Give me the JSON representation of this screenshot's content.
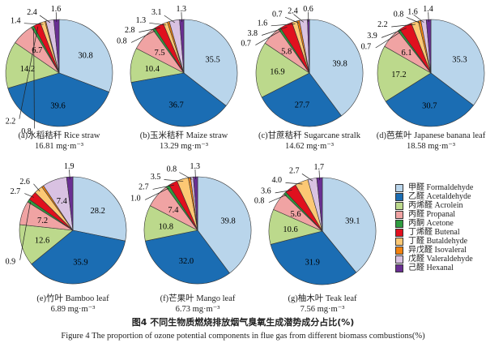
{
  "chart_data": {
    "type": "pie",
    "title_cn": "图4 不同生物质燃烧排放烟气臭氧生成潜势成分占比(%)",
    "title_en": "Figure 4  The proportion of ozone potential components in flue gas from different biomass combustions(%)",
    "components": [
      "甲醛 Formaldehyde",
      "乙醛 Acetaldehyde",
      "丙烯醛 Acrolein",
      "丙醛 Propanal",
      "丙酮 Acetone",
      "丁烯醛 Butenal",
      "丁醛 Butaldehyde",
      "异戊醛 Isovaleral",
      "戊醛 Valeraldehyde",
      "己醛 Hexanal"
    ],
    "colors": [
      "#b9d5eb",
      "#1b6db3",
      "#bcd98c",
      "#f0a3a3",
      "#2f9b3f",
      "#e0101e",
      "#fcc874",
      "#f2820f",
      "#d9c2e2",
      "#6a2f93"
    ],
    "legend_position": "right",
    "pies": [
      {
        "caption": "(a)水稻秸秆 Rice straw",
        "total": "16.81 mg·m⁻³",
        "values": [
          30.8,
          39.6,
          14.2,
          6.7,
          0.8,
          2.2,
          1.4,
          0.3,
          2.4,
          1.6
        ],
        "labels": [
          "30.8",
          "39.6",
          "14.2",
          "6.7",
          "0.8",
          "2.2",
          "1.4",
          null,
          "2.4",
          "1.6"
        ]
      },
      {
        "caption": "(b)玉米秸秆 Maize straw",
        "total": "13.29 mg·m⁻³",
        "values": [
          35.5,
          36.7,
          10.4,
          7.5,
          0.8,
          2.8,
          1.3,
          0.6,
          3.1,
          1.3
        ],
        "labels": [
          "35.5",
          "36.7",
          "10.4",
          "7.5",
          "0.8",
          "2.8",
          "1.3",
          null,
          "3.1",
          "1.3"
        ]
      },
      {
        "caption": "(c)甘蔗秸秆 Sugarcane stralk",
        "total": "14.62 mg·m⁻³",
        "values": [
          39.8,
          27.7,
          16.9,
          5.8,
          0.7,
          3.8,
          1.6,
          0.7,
          2.4,
          0.6
        ],
        "labels": [
          "39.8",
          "27.7",
          "16.9",
          "5.8",
          "0.7",
          "3.8",
          "1.6",
          "0.7",
          "2.4",
          "0.6"
        ]
      },
      {
        "caption": "(d)芭蕉叶 Japanese banana leaf",
        "total": "18.58 mg·m⁻³",
        "values": [
          35.3,
          30.7,
          17.2,
          6.1,
          0.7,
          3.9,
          2.2,
          0.8,
          1.6,
          1.4
        ],
        "labels": [
          "35.3",
          "30.7",
          "17.2",
          "6.1",
          "0.7",
          "3.9",
          "2.2",
          "0.8",
          "1.6",
          "1.4"
        ]
      },
      {
        "caption": "(e)竹叶 Bamboo leaf",
        "total": "6.89 mg·m⁻³",
        "values": [
          28.2,
          35.9,
          12.6,
          7.2,
          0.9,
          2.7,
          2.6,
          0.6,
          7.4,
          1.9
        ],
        "labels": [
          "28.2",
          "35.9",
          "12.6",
          "7.2",
          "0.9",
          "2.7",
          "2.6",
          null,
          "7.4",
          "1.9"
        ]
      },
      {
        "caption": "(f)芒果叶 Mango leaf",
        "total": "6.73 mg·m⁻³",
        "values": [
          39.8,
          32.0,
          10.8,
          7.4,
          1.0,
          2.7,
          3.5,
          0.7,
          0.8,
          1.3
        ],
        "labels": [
          "39.8",
          "32.0",
          "10.8",
          "7.4",
          "1.0",
          "2.7",
          "3.5",
          null,
          "0.8",
          "1.3"
        ]
      },
      {
        "caption": "(g)柚木叶 Teak leaf",
        "total": "7.56 mg·m⁻³",
        "values": [
          39.1,
          31.9,
          10.6,
          5.6,
          0.8,
          3.6,
          4.0,
          0,
          2.7,
          1.7
        ],
        "labels": [
          "39.1",
          "31.9",
          "10.6",
          "5.6",
          "0.8",
          "3.6",
          "4.0",
          null,
          "2.7",
          "1.7"
        ]
      }
    ]
  }
}
